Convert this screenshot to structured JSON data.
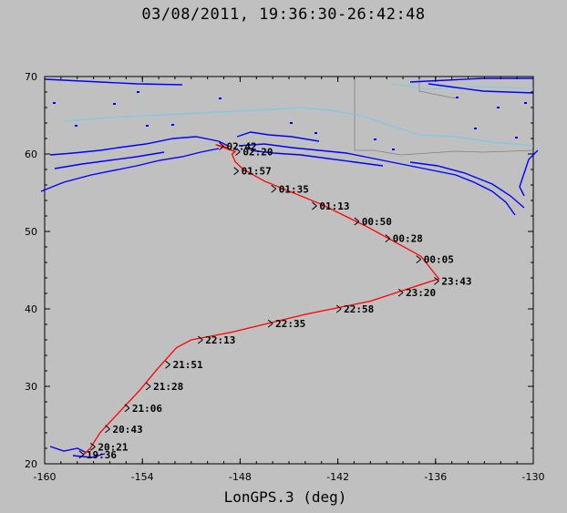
{
  "chart_data": {
    "type": "line",
    "title": "03/08/2011, 19:36:30-26:42:48",
    "xlabel": "LonGPS.3 (deg)",
    "ylabel": "",
    "xlim": [
      -160,
      -130
    ],
    "ylim": [
      20,
      70
    ],
    "x_ticks": [
      "-160",
      "-154",
      "-148",
      "-142",
      "-136",
      "-130"
    ],
    "y_ticks": [
      "20",
      "30",
      "40",
      "50",
      "60",
      "70"
    ],
    "grid": false,
    "colors": {
      "track": "#ff0000",
      "coastline": "#0000ff",
      "rivers": "#7ec8e6",
      "borders": "#808080",
      "background": "#c0c0c0"
    },
    "series": [
      {
        "points": [
          [
            -157.7,
            21.0
          ],
          [
            -157.2,
            22.0
          ],
          [
            -156.6,
            24.0
          ],
          [
            -155.5,
            26.5
          ],
          [
            -154.2,
            29.4
          ],
          [
            -153.1,
            32.2
          ],
          [
            -151.9,
            35.0
          ],
          [
            -151.0,
            36.0
          ],
          [
            -148.5,
            37.0
          ],
          [
            -144.0,
            39.3
          ],
          [
            -140.0,
            41.0
          ],
          [
            -135.8,
            43.9
          ],
          [
            -136.9,
            46.8
          ],
          [
            -140.1,
            50.5
          ],
          [
            -143.0,
            53.5
          ],
          [
            -146.5,
            56.5
          ],
          [
            -147.8,
            58.0
          ],
          [
            -148.3,
            59.0
          ],
          [
            -148.5,
            60.0
          ],
          [
            -148.3,
            60.3
          ],
          [
            -149.5,
            61.2
          ],
          [
            -148.7,
            60.8
          ]
        ]
      }
    ],
    "time_labels": [
      {
        "text": "19:36",
        "x": -157.6,
        "y": 21.2
      },
      {
        "text": "20:21",
        "x": -156.9,
        "y": 22.2
      },
      {
        "text": "20:43",
        "x": -156.0,
        "y": 24.5
      },
      {
        "text": "21:06",
        "x": -154.8,
        "y": 27.2
      },
      {
        "text": "21:28",
        "x": -153.5,
        "y": 30.0
      },
      {
        "text": "21:51",
        "x": -152.3,
        "y": 32.8
      },
      {
        "text": "22:13",
        "x": -150.3,
        "y": 36.0
      },
      {
        "text": "22:35",
        "x": -146.0,
        "y": 38.1
      },
      {
        "text": "22:58",
        "x": -141.8,
        "y": 40.0
      },
      {
        "text": "23:20",
        "x": -138.0,
        "y": 42.1
      },
      {
        "text": "23:43",
        "x": -135.8,
        "y": 43.6
      },
      {
        "text": "00:05",
        "x": -136.9,
        "y": 46.4
      },
      {
        "text": "00:28",
        "x": -138.8,
        "y": 49.1
      },
      {
        "text": "00:50",
        "x": -140.7,
        "y": 51.3
      },
      {
        "text": "01:13",
        "x": -143.3,
        "y": 53.3
      },
      {
        "text": "01:35",
        "x": -145.8,
        "y": 55.5
      },
      {
        "text": "01:57",
        "x": -148.1,
        "y": 57.8
      },
      {
        "text": "02:20",
        "x": -148.0,
        "y": 60.3
      },
      {
        "text": "02:42",
        "x": -149.0,
        "y": 61.0
      }
    ]
  }
}
